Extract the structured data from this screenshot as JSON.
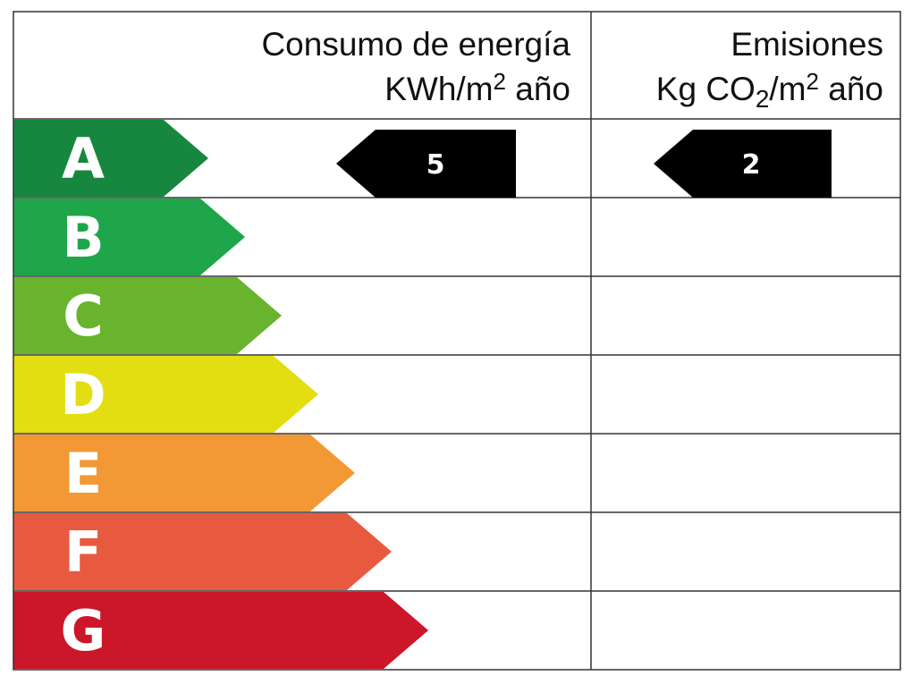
{
  "header": {
    "energy_title": "Consumo de energía",
    "energy_unit": [
      "KWh/m",
      "2",
      " año"
    ],
    "emissions_title": "Emisiones",
    "emissions_unit": [
      "Kg CO",
      "2",
      "/m",
      "2",
      " año"
    ]
  },
  "rows": [
    {
      "letter": "A",
      "color": "#17863f"
    },
    {
      "letter": "B",
      "color": "#1fa64a"
    },
    {
      "letter": "C",
      "color": "#69b42e"
    },
    {
      "letter": "D",
      "color": "#e2de12"
    },
    {
      "letter": "E",
      "color": "#f29834"
    },
    {
      "letter": "F",
      "color": "#e85a40"
    },
    {
      "letter": "G",
      "color": "#cc1629"
    }
  ],
  "energy_value": 5,
  "emissions_value": 2
}
